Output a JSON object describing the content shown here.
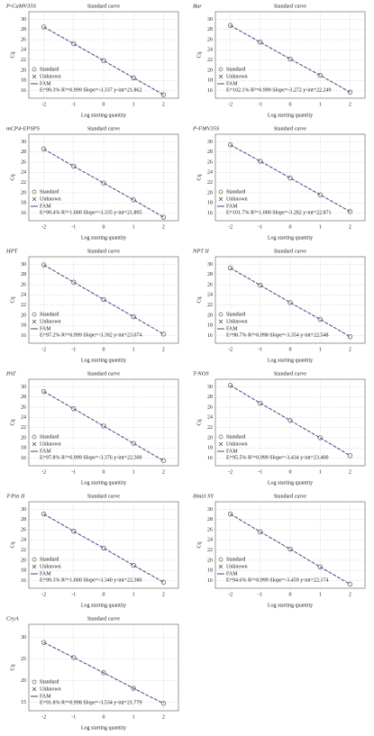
{
  "chart_data": [
    {
      "type": "scatter",
      "label": "P-CaMV35S",
      "title": "Standard curve",
      "xlabel": "Log starting quantity",
      "ylabel": "Cq",
      "x": [
        -2,
        -1,
        0,
        1,
        2
      ],
      "xlim": [
        -2.5,
        2.5
      ],
      "xticks": [
        -2,
        -1,
        0,
        1,
        2
      ],
      "ylim": [
        14.5,
        31.5
      ],
      "yticks": [
        16,
        18,
        20,
        22,
        24,
        26,
        28,
        30
      ],
      "grid": true,
      "series": [
        {
          "name": "Standard",
          "color": "#666666",
          "values": [
            28.5,
            25.2,
            21.9,
            18.5,
            15.2
          ]
        },
        {
          "name": "FAM",
          "color": "#3a4a8a",
          "values": [
            28.5,
            25.2,
            21.9,
            18.5,
            15.2
          ]
        }
      ],
      "unknown_label": "Unknown",
      "equation": "E=99.3% R²=0.999 Slope=-3.337 y-int=21.862"
    },
    {
      "type": "scatter",
      "label": "Bar",
      "title": "Standard curve",
      "xlabel": "Log starting quantity",
      "ylabel": "Cq",
      "x": [
        -2,
        -1,
        0,
        1,
        2
      ],
      "xlim": [
        -2.5,
        2.5
      ],
      "xticks": [
        -2,
        -1,
        0,
        1,
        2
      ],
      "ylim": [
        14.5,
        31.5
      ],
      "yticks": [
        16,
        18,
        20,
        22,
        24,
        26,
        28,
        30
      ],
      "grid": true,
      "series": [
        {
          "name": "Standard",
          "color": "#666666",
          "values": [
            28.8,
            25.5,
            22.2,
            19.0,
            15.7
          ]
        },
        {
          "name": "FAM",
          "color": "#3a4a8a",
          "values": [
            28.8,
            25.5,
            22.2,
            19.0,
            15.7
          ]
        }
      ],
      "unknown_label": "Unknown",
      "equation": "E=102.1% R²=0.999 Slope=-3.272 y-int=22.249"
    },
    {
      "type": "scatter",
      "label": "mCP4-EPSPS",
      "title": "Standard curve",
      "xlabel": "Log starting quantity",
      "ylabel": "Cq",
      "x": [
        -2,
        -1,
        0,
        1,
        2
      ],
      "xlim": [
        -2.5,
        2.5
      ],
      "xticks": [
        -2,
        -1,
        0,
        1,
        2
      ],
      "ylim": [
        14.5,
        31.5
      ],
      "yticks": [
        16,
        18,
        20,
        22,
        24,
        26,
        28,
        30
      ],
      "grid": true,
      "series": [
        {
          "name": "Standard",
          "color": "#666666",
          "values": [
            28.6,
            25.2,
            21.9,
            18.6,
            15.2
          ]
        },
        {
          "name": "FAM",
          "color": "#3a4a8a",
          "values": [
            28.6,
            25.2,
            21.9,
            18.6,
            15.2
          ]
        }
      ],
      "unknown_label": "Unknown",
      "equation": "E=99.4% R²=1.000 Slope=-3.335 y-int=21.895"
    },
    {
      "type": "scatter",
      "label": "P-FMV35S",
      "title": "Standard curve",
      "xlabel": "Log starting quantity",
      "ylabel": "Cq",
      "x": [
        -2,
        -1,
        0,
        1,
        2
      ],
      "xlim": [
        -2.5,
        2.5
      ],
      "xticks": [
        -2,
        -1,
        0,
        1,
        2
      ],
      "ylim": [
        14.5,
        31.5
      ],
      "yticks": [
        16,
        18,
        20,
        22,
        24,
        26,
        28,
        30
      ],
      "grid": true,
      "series": [
        {
          "name": "Standard",
          "color": "#666666",
          "values": [
            29.4,
            26.2,
            22.9,
            19.6,
            16.3
          ]
        },
        {
          "name": "FAM",
          "color": "#3a4a8a",
          "values": [
            29.4,
            26.2,
            22.9,
            19.6,
            16.3
          ]
        }
      ],
      "unknown_label": "Unknown",
      "equation": "E=101.7% R²=1.000 Slope=-3.282 y-int=22.871"
    },
    {
      "type": "scatter",
      "label": "HPT",
      "title": "Standard curve",
      "xlabel": "Log starting quantity",
      "ylabel": "Cq",
      "x": [
        -2,
        -1,
        0,
        1,
        2
      ],
      "xlim": [
        -2.5,
        2.5
      ],
      "xticks": [
        -2,
        -1,
        0,
        1,
        2
      ],
      "ylim": [
        14.5,
        31.5
      ],
      "yticks": [
        16,
        18,
        20,
        22,
        24,
        26,
        28,
        30
      ],
      "grid": true,
      "series": [
        {
          "name": "Standard",
          "color": "#666666",
          "values": [
            29.9,
            26.5,
            23.1,
            19.7,
            16.3
          ]
        },
        {
          "name": "FAM",
          "color": "#3a4a8a",
          "values": [
            29.9,
            26.5,
            23.1,
            19.7,
            16.3
          ]
        }
      ],
      "unknown_label": "Unknown",
      "equation": "E=97.2% R²=0.999 Slope=-3.392 y-int=23.074"
    },
    {
      "type": "scatter",
      "label": "NPT II",
      "title": "Standard curve",
      "xlabel": "Log starting quantity",
      "ylabel": "Cq",
      "x": [
        -2,
        -1,
        0,
        1,
        2
      ],
      "xlim": [
        -2.5,
        2.5
      ],
      "xticks": [
        -2,
        -1,
        0,
        1,
        2
      ],
      "ylim": [
        14.5,
        31.5
      ],
      "yticks": [
        16,
        18,
        20,
        22,
        24,
        26,
        28,
        30
      ],
      "grid": true,
      "series": [
        {
          "name": "Standard",
          "color": "#666666",
          "values": [
            29.3,
            25.9,
            22.5,
            19.2,
            15.8
          ]
        },
        {
          "name": "FAM",
          "color": "#3a4a8a",
          "values": [
            29.3,
            25.9,
            22.5,
            19.2,
            15.8
          ]
        }
      ],
      "unknown_label": "Unknown",
      "equation": "E=98.7% R²=0.998 Slope=-3.354 y-int=22.548"
    },
    {
      "type": "scatter",
      "label": "PAT",
      "title": "Standard curve",
      "xlabel": "Log starting quantity",
      "ylabel": "Cq",
      "x": [
        -2,
        -1,
        0,
        1,
        2
      ],
      "xlim": [
        -2.5,
        2.5
      ],
      "xticks": [
        -2,
        -1,
        0,
        1,
        2
      ],
      "ylim": [
        14.5,
        31.5
      ],
      "yticks": [
        16,
        18,
        20,
        22,
        24,
        26,
        28,
        30
      ],
      "grid": true,
      "series": [
        {
          "name": "Standard",
          "color": "#666666",
          "values": [
            29.1,
            25.7,
            22.3,
            18.9,
            15.5
          ]
        },
        {
          "name": "FAM",
          "color": "#3a4a8a",
          "values": [
            29.1,
            25.7,
            22.3,
            18.9,
            15.5
          ]
        }
      ],
      "unknown_label": "Unknown",
      "equation": "E=97.8% R²=0.999 Slope=-3.376 y-int=22.300"
    },
    {
      "type": "scatter",
      "label": "T-NOS",
      "title": "Standard curve",
      "xlabel": "Log starting quantity",
      "ylabel": "Cq",
      "x": [
        -2,
        -1,
        0,
        1,
        2
      ],
      "xlim": [
        -2.5,
        2.5
      ],
      "xticks": [
        -2,
        -1,
        0,
        1,
        2
      ],
      "ylim": [
        14.5,
        31.5
      ],
      "yticks": [
        16,
        18,
        20,
        22,
        24,
        26,
        28,
        30
      ],
      "grid": true,
      "series": [
        {
          "name": "Standard",
          "color": "#666666",
          "values": [
            30.3,
            26.8,
            23.4,
            20.0,
            16.5
          ]
        },
        {
          "name": "FAM",
          "color": "#3a4a8a",
          "values": [
            30.3,
            26.8,
            23.4,
            20.0,
            16.5
          ]
        }
      ],
      "unknown_label": "Unknown",
      "equation": "E=95.5% R²=0.999 Slope=-3.434 y-int=23.400"
    },
    {
      "type": "scatter",
      "label": "T-Pin II",
      "title": "Standard curve",
      "xlabel": "Log starting quantity",
      "ylabel": "Cq",
      "x": [
        -2,
        -1,
        0,
        1,
        2
      ],
      "xlim": [
        -2.5,
        2.5
      ],
      "xticks": [
        -2,
        -1,
        0,
        1,
        2
      ],
      "ylim": [
        14.5,
        31.5
      ],
      "yticks": [
        16,
        18,
        20,
        22,
        24,
        26,
        28,
        30
      ],
      "grid": true,
      "series": [
        {
          "name": "Standard",
          "color": "#666666",
          "values": [
            29.1,
            25.7,
            22.4,
            19.0,
            15.7
          ]
        },
        {
          "name": "FAM",
          "color": "#3a4a8a",
          "values": [
            29.1,
            25.7,
            22.4,
            19.0,
            15.7
          ]
        }
      ],
      "unknown_label": "Unknown",
      "equation": "E=99.3% R²=1.000 Slope=-3.340 y-int=22.380"
    },
    {
      "type": "scatter",
      "label": "Hmt3 SY",
      "title": "Standard curve",
      "xlabel": "Log starting quantity",
      "ylabel": "Cq",
      "x": [
        -2,
        -1,
        0,
        1,
        2
      ],
      "xlim": [
        -2.5,
        2.5
      ],
      "xticks": [
        -2,
        -1,
        0,
        1,
        2
      ],
      "ylim": [
        14.5,
        31.5
      ],
      "yticks": [
        16,
        18,
        20,
        22,
        24,
        26,
        28,
        30
      ],
      "grid": true,
      "series": [
        {
          "name": "Standard",
          "color": "#666666",
          "values": [
            29.1,
            25.6,
            22.2,
            18.7,
            15.3
          ]
        },
        {
          "name": "FAM",
          "color": "#3a4a8a",
          "values": [
            29.1,
            25.6,
            22.2,
            18.7,
            15.3
          ]
        }
      ],
      "unknown_label": "Unknown",
      "equation": "E=94.6% R²=0.999 Slope=-3.459 y-int=22.174"
    },
    {
      "type": "scatter",
      "label": "CryA",
      "title": "Standard curve",
      "xlabel": "Log starting quantity",
      "ylabel": "Cq",
      "x": [
        -2,
        -1,
        0,
        1,
        2
      ],
      "xlim": [
        -2.5,
        2.5
      ],
      "xticks": [
        -2,
        -1,
        0,
        1,
        2
      ],
      "ylim": [
        13,
        33
      ],
      "yticks": [
        15,
        20,
        25,
        30
      ],
      "grid": true,
      "series": [
        {
          "name": "Standard",
          "color": "#666666",
          "values": [
            28.8,
            25.3,
            21.8,
            18.2,
            14.7
          ]
        },
        {
          "name": "FAM",
          "color": "#3a4a8a",
          "values": [
            28.8,
            25.3,
            21.8,
            18.2,
            14.7
          ]
        }
      ],
      "unknown_label": "Unknown",
      "equation": "E=91.8% R²=0.998 Slope=-3.534 y-int=21.779"
    }
  ]
}
